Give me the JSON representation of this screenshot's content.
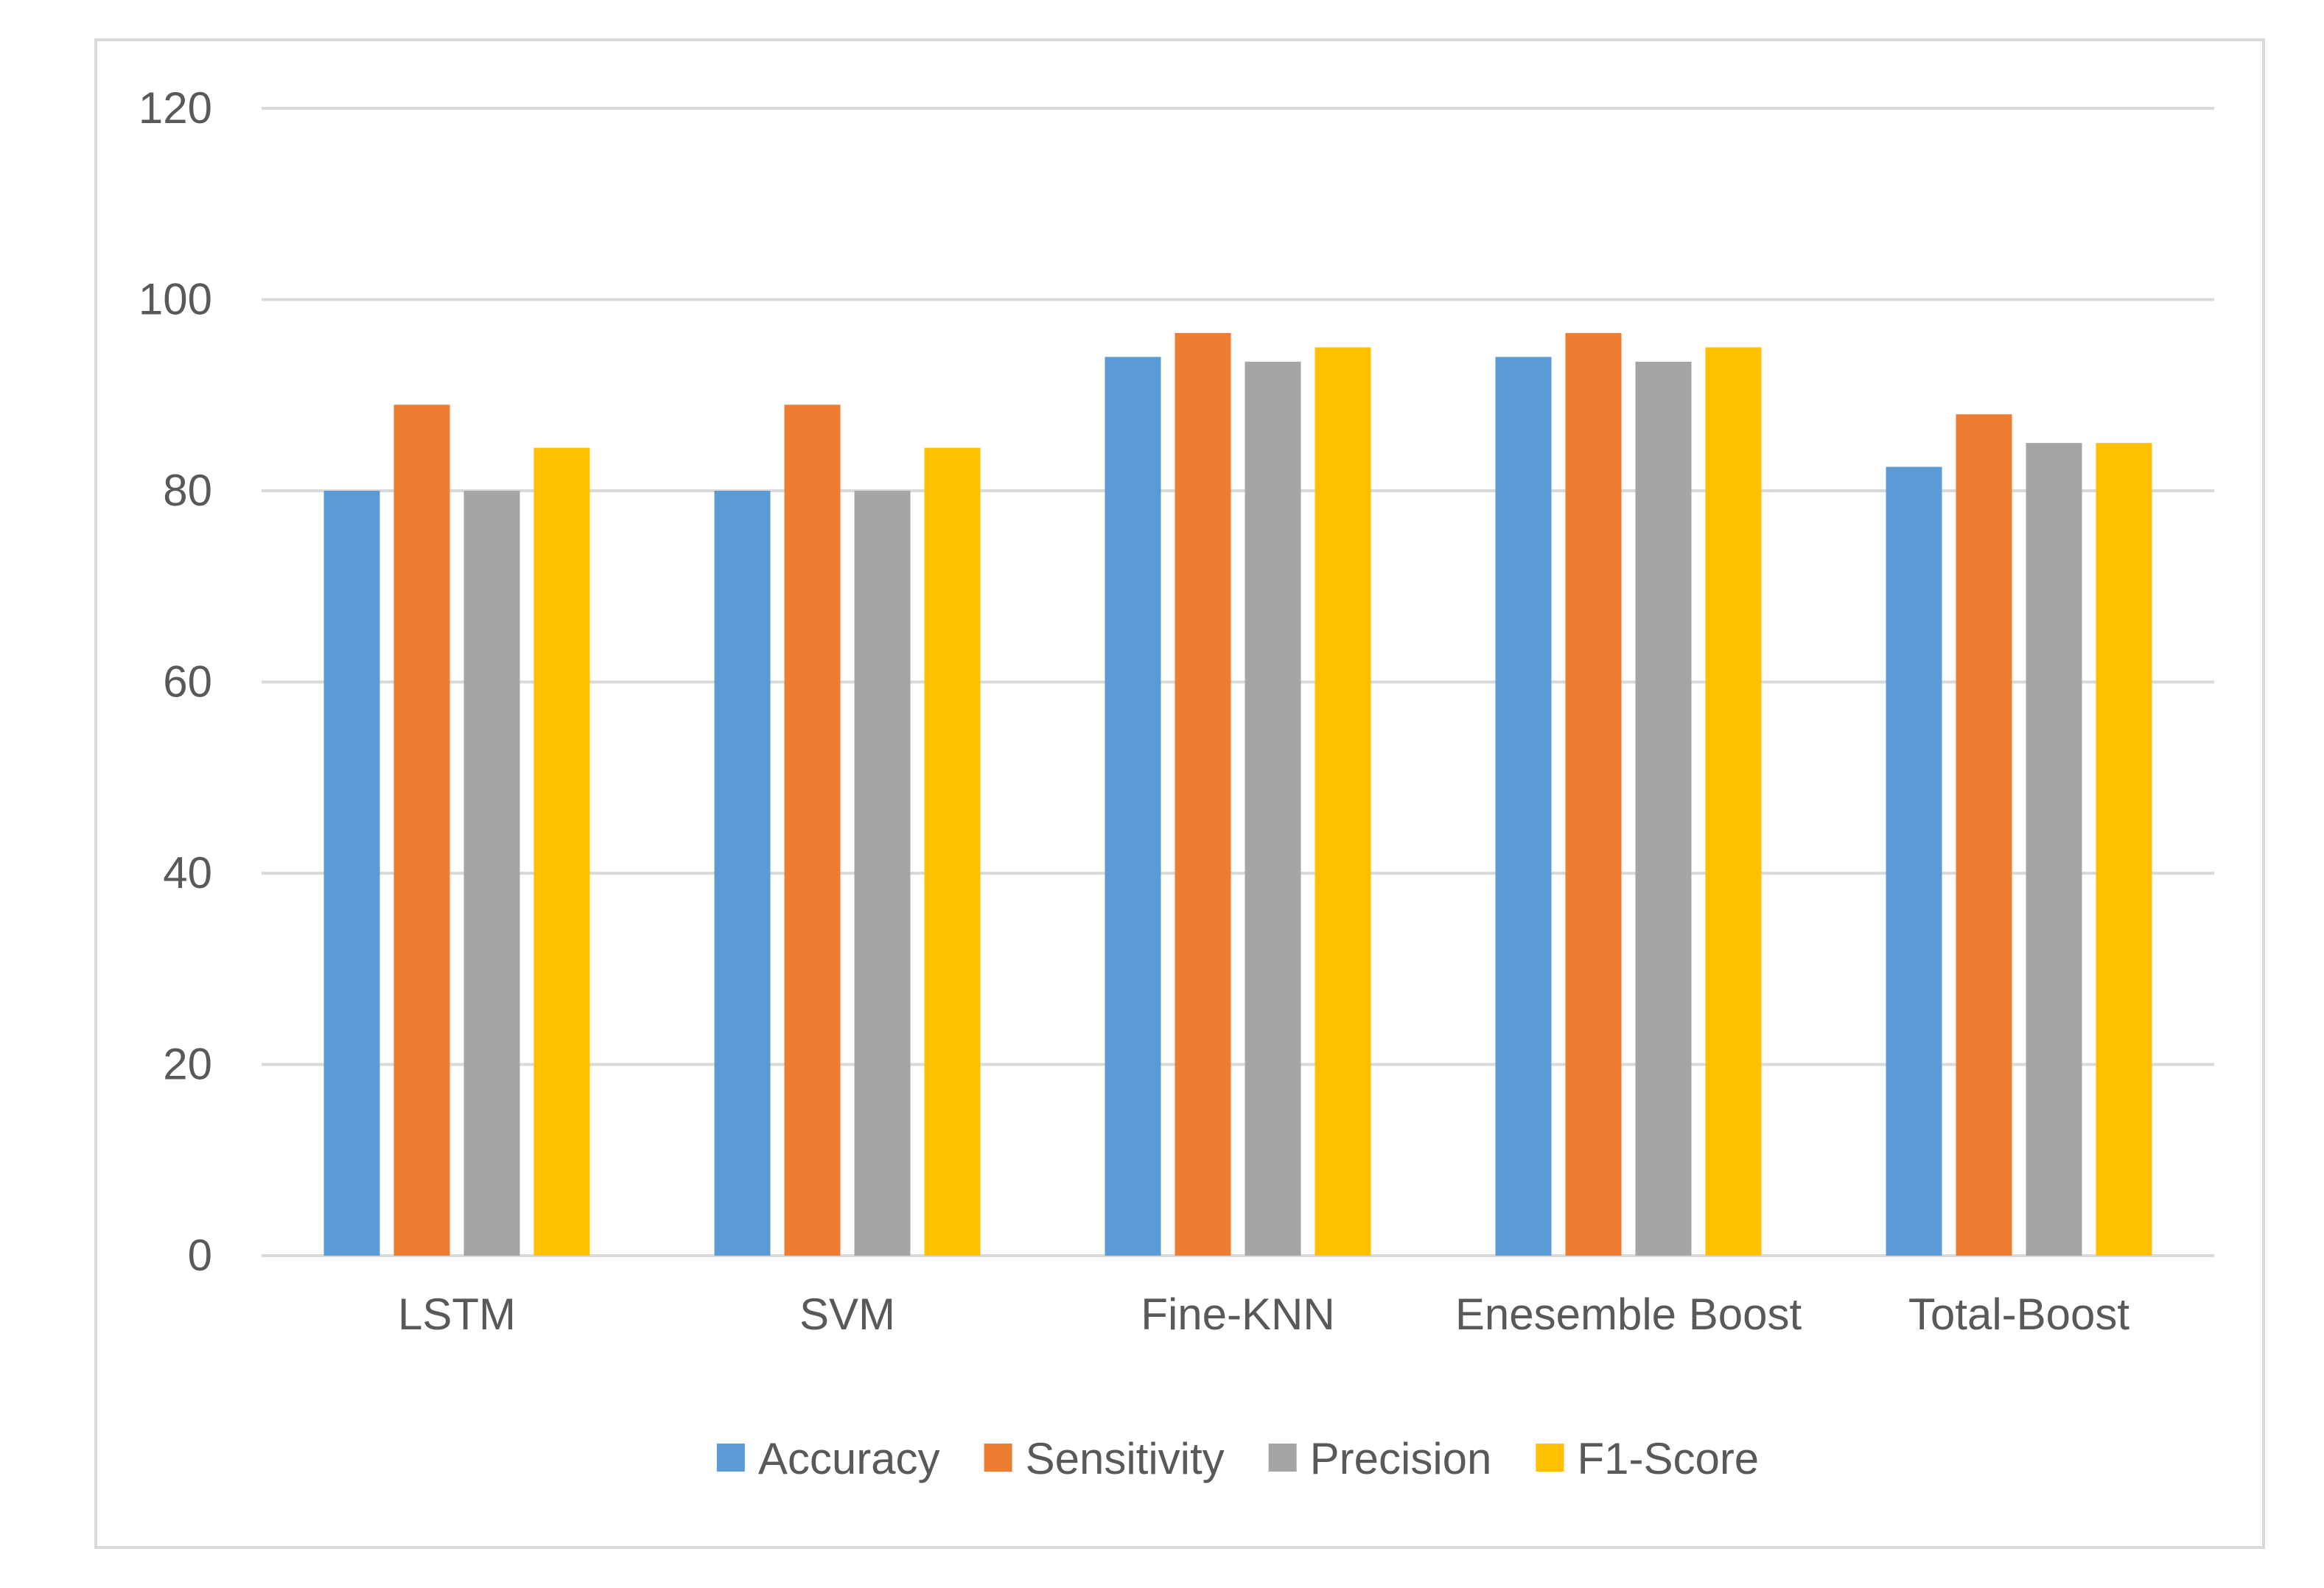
{
  "chart_data": {
    "type": "bar",
    "title": "",
    "xlabel": "",
    "ylabel": "",
    "ylim": [
      0,
      120
    ],
    "yticks": [
      "0",
      "20",
      "40",
      "60",
      "80",
      "100",
      "120"
    ],
    "grid": true,
    "legend_position": "bottom",
    "categories": [
      "LSTM",
      "SVM",
      "Fine-KNN",
      "Enesemble Boost",
      "Total-Boost"
    ],
    "series": [
      {
        "name": "Accuracy",
        "color": "#5b9bd5",
        "values": [
          80,
          80,
          94,
          94,
          82.5
        ]
      },
      {
        "name": "Sensitivity",
        "color": "#ed7d31",
        "values": [
          89,
          89,
          96.5,
          96.5,
          88
        ]
      },
      {
        "name": "Precision",
        "color": "#a5a5a5",
        "values": [
          80,
          80,
          93.5,
          93.5,
          85
        ]
      },
      {
        "name": "F1-Score",
        "color": "#ffc000",
        "values": [
          84.5,
          84.5,
          95,
          95,
          85
        ]
      }
    ],
    "gridline_color": "#d9d9d9",
    "axis_line_color": "#d9d9d9"
  }
}
